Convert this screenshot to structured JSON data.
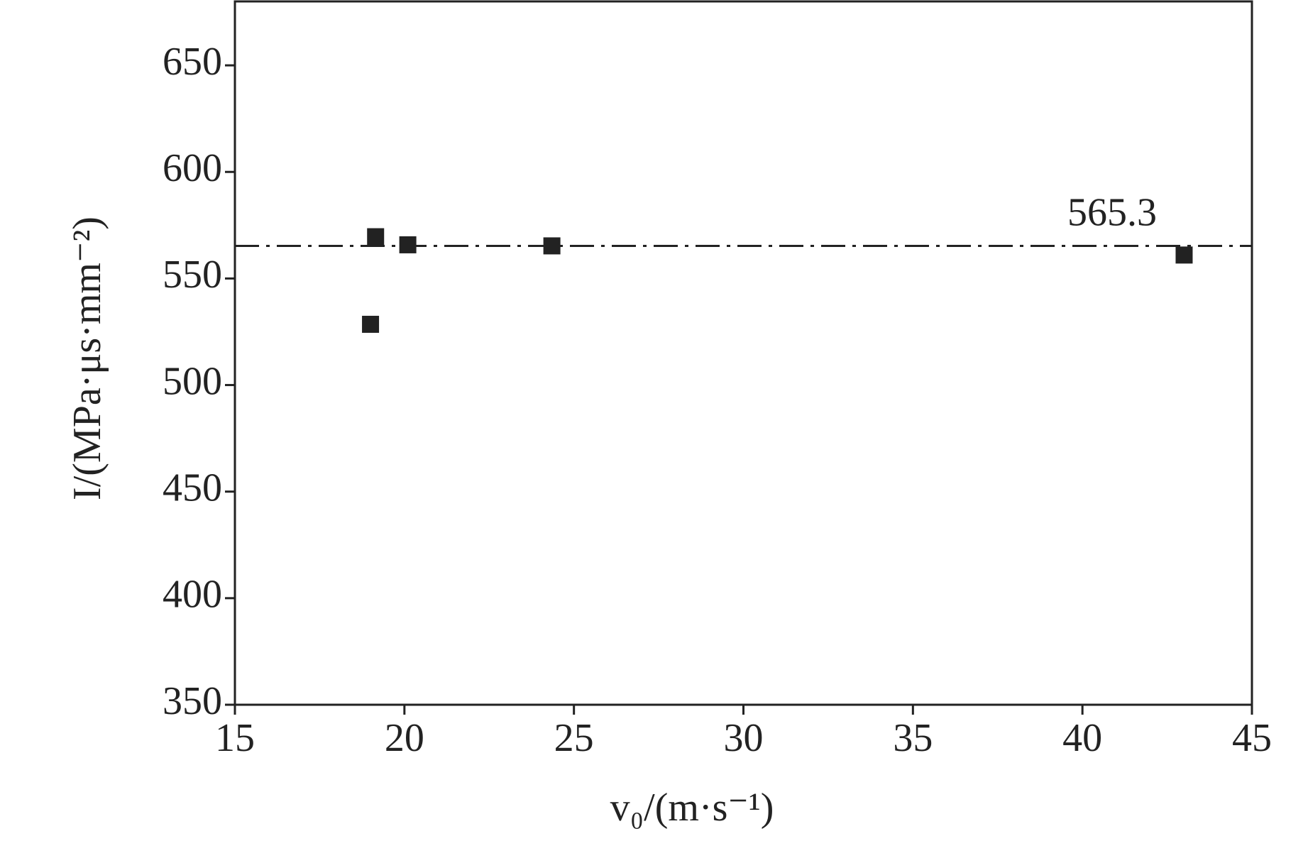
{
  "chart_data": {
    "type": "scatter",
    "x_label": "v₀/(m·s⁻¹)",
    "y_label": "I/(MPa·μs·mm⁻²)",
    "series": [
      {
        "x": [
          19.0,
          19.15,
          20.1,
          24.35,
          43.0
        ],
        "values": [
          528.5,
          569.6,
          565.8,
          565.3,
          561.0
        ],
        "color": "#222222"
      }
    ],
    "reference_line": 565.3,
    "xlim": [
      15,
      45
    ],
    "xticks": [
      15,
      20,
      25,
      30,
      35,
      40,
      45
    ],
    "ylim": [
      350,
      680
    ],
    "yticks": [
      350,
      400,
      450,
      500,
      550,
      600,
      650
    ],
    "grid": false
  }
}
